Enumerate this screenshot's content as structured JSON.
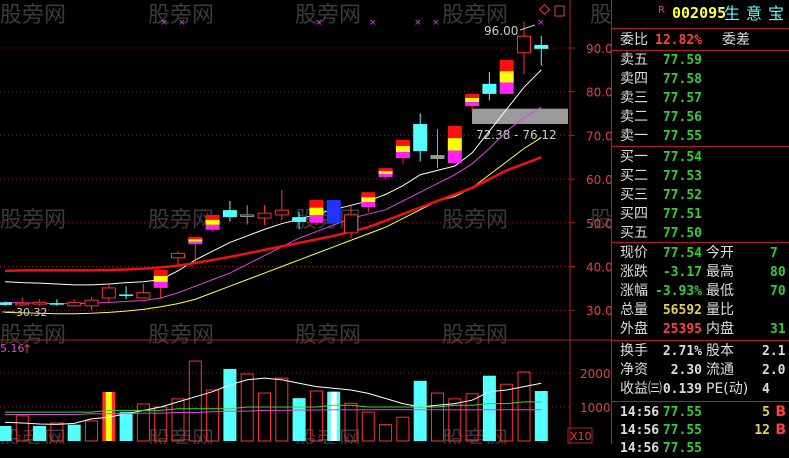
{
  "header": {
    "badge": "R",
    "code": "002095",
    "name": "生意宝",
    "icons": [
      "diamond-icon",
      "window-icon"
    ]
  },
  "weibi": {
    "label": "委比",
    "value": "12.82%",
    "label2": "委差"
  },
  "asks": [
    {
      "label": "卖五",
      "price": "77.59"
    },
    {
      "label": "卖四",
      "price": "77.58"
    },
    {
      "label": "卖三",
      "price": "77.57"
    },
    {
      "label": "卖二",
      "price": "77.56"
    },
    {
      "label": "卖一",
      "price": "77.55"
    }
  ],
  "bids": [
    {
      "label": "买一",
      "price": "77.54"
    },
    {
      "label": "买二",
      "price": "77.53"
    },
    {
      "label": "买三",
      "price": "77.52"
    },
    {
      "label": "买四",
      "price": "77.51"
    },
    {
      "label": "买五",
      "price": "77.50"
    }
  ],
  "quote": [
    {
      "l1": "现价",
      "v1": "77.54",
      "c1": "g",
      "l2": "今开",
      "v2": "7",
      "c2": "g"
    },
    {
      "l1": "涨跌",
      "v1": "-3.17",
      "c1": "g",
      "l2": "最高",
      "v2": "80",
      "c2": "g"
    },
    {
      "l1": "涨幅",
      "v1": "-3.93%",
      "c1": "g",
      "l2": "最低",
      "v2": "70",
      "c2": "g"
    },
    {
      "l1": "总量",
      "v1": "56592",
      "c1": "y",
      "l2": "量比",
      "v2": "",
      "c2": "g"
    },
    {
      "l1": "外盘",
      "v1": "25395",
      "c1": "r",
      "l2": "内盘",
      "v2": "31",
      "c2": "g"
    }
  ],
  "finance": [
    {
      "l1": "换手",
      "v1": "2.71%",
      "l2": "股本",
      "v2": "2.1"
    },
    {
      "l1": "净资",
      "v1": "2.30",
      "l2": "流通",
      "v2": "2.0"
    },
    {
      "l1": "收益㈢",
      "v1": "0.139",
      "l2": "PE(动)",
      "v2": "4"
    }
  ],
  "trades": [
    {
      "time": "14:56",
      "price": "77.55",
      "vol": "5",
      "side": "B"
    },
    {
      "time": "14:56",
      "price": "77.55",
      "vol": "12",
      "side": "B"
    },
    {
      "time": "14:56",
      "price": "77.55",
      "vol": "",
      "side": ""
    }
  ],
  "watermark": "股旁网",
  "colors": {
    "up": "#ff3030",
    "down": "#55ffff",
    "axis": "#b02020",
    "ma5": "#ffffff",
    "ma10": "#dd44dd",
    "ma20": "#ffff44",
    "ma60": "#ee1111"
  },
  "chart_data": {
    "type": "candlestick",
    "ylim": [
      28,
      97
    ],
    "yticks": [
      "90.00",
      "80.00",
      "70.00",
      "60.00",
      "50.00",
      "40.00",
      "30.00"
    ],
    "ytick_values": [
      90,
      80,
      70,
      60,
      50,
      40,
      30
    ],
    "annotations": {
      "high_label": "96.00",
      "low_label": "30.32",
      "range_label": "72.38 - 76.12",
      "range": [
        72.38,
        76.12
      ],
      "volume_label": "5.16"
    },
    "candles": [
      [
        31.8,
        31.2,
        32,
        31
      ],
      [
        31.2,
        31.6,
        33,
        31
      ],
      [
        31.4,
        31.8,
        32.5,
        31
      ],
      [
        31.6,
        31.5,
        32.5,
        31
      ],
      [
        31,
        31.8,
        32.5,
        30.8
      ],
      [
        31,
        32.3,
        33,
        30
      ],
      [
        32.8,
        35.1,
        36,
        31.8
      ],
      [
        33.6,
        33.5,
        35.5,
        32.5
      ],
      [
        32.8,
        34,
        36,
        32.8
      ],
      [
        35.1,
        39.2,
        39.2,
        32.5
      ],
      [
        42,
        43,
        43.5,
        40.5
      ],
      [
        45.1,
        46.8,
        46.8,
        41
      ],
      [
        48.4,
        51.8,
        51.8,
        48
      ],
      [
        52.9,
        51.3,
        55,
        50.3
      ],
      [
        51.8,
        51.8,
        54,
        49.6
      ],
      [
        51.1,
        52.2,
        54,
        49.5
      ],
      [
        51.8,
        52.9,
        57.5,
        50.6
      ],
      [
        51.3,
        50.2,
        52.5,
        48.5
      ],
      [
        50,
        55.2,
        55.2,
        49.5
      ],
      [
        55.2,
        50,
        55.2,
        50
      ],
      [
        47.7,
        51.8,
        54,
        46.5
      ],
      [
        53.6,
        57,
        57,
        52.4
      ],
      [
        60.5,
        62.5,
        62.5,
        60
      ],
      [
        64.8,
        69,
        69,
        63.5
      ],
      [
        72.6,
        66.4,
        75,
        64
      ],
      [
        65.5,
        64.6,
        71.5,
        62.5
      ],
      [
        63.7,
        72.2,
        72.2,
        63.5
      ],
      [
        76.7,
        79.5,
        79.5,
        75.5
      ],
      [
        81.8,
        79.5,
        84.5,
        78
      ],
      [
        79.5,
        87.3,
        87.3,
        79.5
      ],
      [
        88.9,
        92.7,
        96,
        84
      ],
      [
        90.7,
        89.8,
        92.7,
        86
      ]
    ],
    "candle_format": [
      "open",
      "close",
      "high",
      "low"
    ],
    "ma": [
      {
        "values": [
          36.5,
          36.3,
          36.2,
          36,
          35.8,
          35.8,
          36,
          36.3,
          36.5,
          37,
          39,
          41.5,
          43.5,
          45.5,
          47,
          48.5,
          49.8,
          50.8,
          52,
          53,
          54,
          55,
          56.5,
          58.5,
          61,
          62,
          63,
          66,
          71,
          76,
          81,
          85
        ]
      },
      {
        "values": [
          31.8,
          31.7,
          31.6,
          31.5,
          31.5,
          31.6,
          31.8,
          32,
          32.2,
          32.8,
          34,
          35.5,
          37,
          38.5,
          40.5,
          42.5,
          44.5,
          46.5,
          48,
          49.5,
          51,
          52,
          53,
          55,
          57,
          59,
          61,
          63.5,
          67,
          71,
          74,
          76.5
        ]
      },
      {
        "values": [
          29.5,
          29.4,
          29.3,
          29.2,
          29.2,
          29.3,
          29.5,
          29.8,
          30.2,
          30.8,
          31.5,
          32.5,
          34,
          35.5,
          37,
          38.5,
          40,
          41.5,
          43,
          44.5,
          46,
          47.5,
          49,
          51,
          53,
          55,
          56,
          58,
          61,
          64,
          67,
          69.5
        ]
      },
      {
        "values": [
          39,
          39.1,
          39.1,
          39.1,
          39.1,
          39.1,
          39.2,
          39.3,
          39.5,
          39.8,
          40.2,
          40.8,
          41.5,
          42.2,
          43,
          43.8,
          44.6,
          45.4,
          46.2,
          47,
          48,
          49,
          50.5,
          52,
          53.5,
          55,
          56.5,
          58,
          60,
          62,
          63.5,
          65
        ]
      }
    ],
    "volume": {
      "values": [
        4400,
        7400,
        4400,
        5300,
        4800,
        5900,
        14400,
        8500,
        10900,
        10000,
        12400,
        23500,
        15000,
        21200,
        19700,
        14100,
        18500,
        12600,
        14700,
        14500,
        11100,
        8500,
        4800,
        7000,
        17700,
        14100,
        12400,
        13900,
        19200,
        16700,
        20300,
        14700
      ],
      "colors": [
        "d",
        "u",
        "d",
        "u",
        "d",
        "u",
        "y",
        "d",
        "u",
        "u",
        "u",
        "u",
        "u",
        "d",
        "u",
        "u",
        "u",
        "d",
        "u",
        "w",
        "u",
        "u",
        "u",
        "u",
        "d",
        "u",
        "u",
        "u",
        "d",
        "u",
        "u",
        "d"
      ],
      "ylim": [
        0,
        25000
      ],
      "yticks": [
        "20000",
        "10000"
      ],
      "ytick_values": [
        20000,
        10000
      ],
      "unit_label": "X10",
      "ma": [
        {
          "values": [
            5500,
            5300,
            5000,
            4900,
            5200,
            6500,
            7000,
            8000,
            9000,
            10000,
            11500,
            13000,
            14500,
            16500,
            18000,
            18500,
            18000,
            17000,
            16000,
            15500,
            15000,
            14000,
            12500,
            11000,
            10000,
            10500,
            11000,
            12000,
            14500,
            15000,
            16000,
            17000
          ]
        },
        {
          "values": [
            8500,
            8500,
            8500,
            8500,
            8500,
            8500,
            9000,
            9000,
            9000,
            9000,
            9500,
            9500,
            9500,
            9500,
            10000,
            10000,
            10000,
            10000,
            10000,
            10500,
            10500,
            10000,
            10000,
            10000,
            10000,
            10000,
            10500,
            10500,
            11000,
            11000,
            11500,
            11500
          ]
        },
        {
          "values": [
            7800,
            7800,
            7800,
            7800,
            7800,
            8000,
            8000,
            8000,
            8200,
            8200,
            8400,
            8400,
            8600,
            8800,
            8800,
            9000,
            9000,
            9100,
            9100,
            9200,
            9200,
            9200,
            9200,
            9200,
            9200,
            9200,
            9200,
            9200,
            9200,
            9200,
            9200,
            9200
          ]
        }
      ]
    }
  }
}
